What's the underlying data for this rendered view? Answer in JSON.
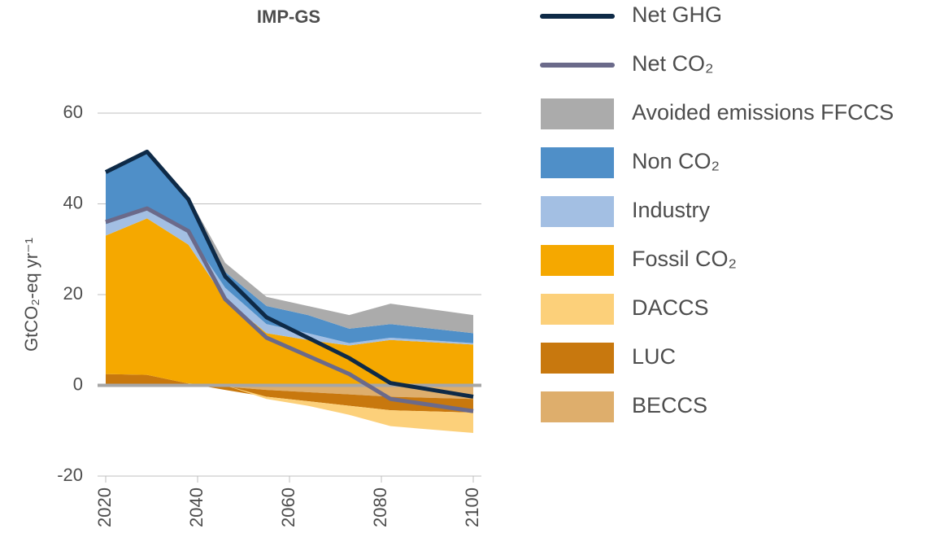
{
  "chart_data": {
    "type": "stacked-area-line",
    "title": "IMP-GS",
    "ylabel": "GtCO₂-eq yr⁻¹",
    "x": [
      2020,
      2029,
      2038,
      2046,
      2055,
      2064,
      2073,
      2082,
      2100
    ],
    "xlim": [
      2020,
      2100
    ],
    "xticks": [
      2020,
      2040,
      2060,
      2080,
      2100
    ],
    "ylim": [
      -20,
      60
    ],
    "yticks": [
      -20,
      0,
      20,
      40,
      60
    ],
    "grid": true,
    "series": [
      {
        "name": "Net GHG",
        "kind": "line",
        "color": "#0e2a47",
        "values": [
          47,
          51.5,
          41,
          24,
          15,
          10.5,
          6,
          0.5,
          -2.5
        ]
      },
      {
        "name": "Net CO₂",
        "kind": "line",
        "color": "#6b6a8a",
        "values": [
          36,
          39,
          34,
          19,
          10.5,
          6.5,
          2.5,
          -3,
          -5.7
        ]
      },
      {
        "name": "Avoided emissions FFCCS",
        "kind": "area",
        "color": "#ababab",
        "values": [
          0,
          0,
          0.5,
          2,
          2,
          2,
          3,
          4.5,
          4
        ]
      },
      {
        "name": "Non CO₂",
        "kind": "area",
        "color": "#4f8fc8",
        "values": [
          11.5,
          12.5,
          7.5,
          3.5,
          4,
          4,
          3.2,
          3,
          2.2
        ]
      },
      {
        "name": "Industry",
        "kind": "area",
        "color": "#a3bfe3",
        "values": [
          2.5,
          2,
          2.5,
          2.5,
          2,
          1.5,
          0.5,
          0.5,
          0.3
        ]
      },
      {
        "name": "Fossil CO₂",
        "kind": "area",
        "color": "#f5a800",
        "values": [
          30.5,
          34.5,
          30.6,
          19,
          11.5,
          10,
          8.8,
          10,
          9
        ]
      },
      {
        "name": "DACCS",
        "kind": "area",
        "color": "#fcd07a",
        "values": [
          0,
          0,
          0,
          0,
          -0.5,
          -1,
          -2,
          -3.5,
          -4.5
        ]
      },
      {
        "name": "LUC",
        "kind": "area",
        "color": "#c8780e",
        "values": [
          2.5,
          2.3,
          0.4,
          -0.7,
          -1.5,
          -2,
          -2.5,
          -3,
          -3
        ]
      },
      {
        "name": "BECCS",
        "kind": "area",
        "color": "#deae6c",
        "values": [
          0,
          0,
          0,
          -0.3,
          -1,
          -1.5,
          -2,
          -2.5,
          -3
        ]
      }
    ]
  }
}
